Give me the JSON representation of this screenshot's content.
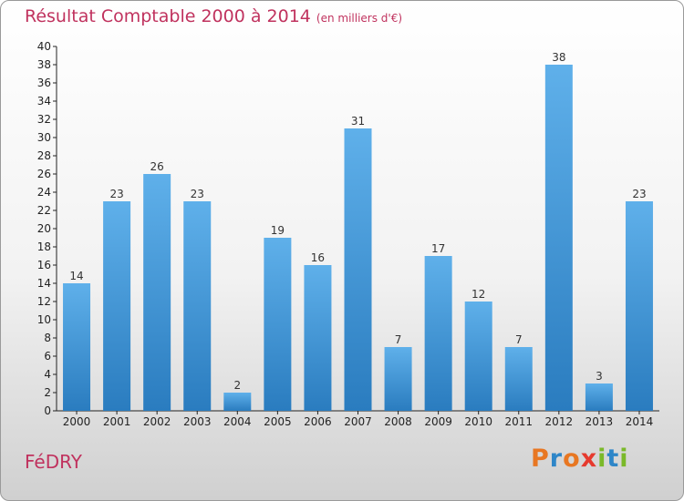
{
  "chart_data": {
    "type": "bar",
    "title": "Résultat Comptable 2000 à 2014",
    "subtitle": "(en milliers d'€)",
    "categories": [
      "2000",
      "2001",
      "2002",
      "2003",
      "2004",
      "2005",
      "2006",
      "2007",
      "2008",
      "2009",
      "2010",
      "2011",
      "2012",
      "2013",
      "2014"
    ],
    "values": [
      14,
      23,
      26,
      23,
      2,
      19,
      16,
      31,
      7,
      17,
      12,
      7,
      38,
      3,
      23
    ],
    "ylim": [
      0,
      40
    ],
    "ytick_step": 2,
    "xlabel": "",
    "ylabel": "",
    "grid": false
  },
  "footer": {
    "commune": "FéDRY",
    "logo_letters": [
      "P",
      "r",
      "o",
      "x",
      "i",
      "t",
      "i"
    ]
  },
  "colors": {
    "accent": "#c0325e",
    "bar_light": "#5fb0ea",
    "bar_dark": "#2a7cbf",
    "logo": [
      "#e87722",
      "#2e86c8",
      "#e87722",
      "#e63a2e",
      "#7ab929",
      "#2e86c8",
      "#7ab929"
    ]
  }
}
